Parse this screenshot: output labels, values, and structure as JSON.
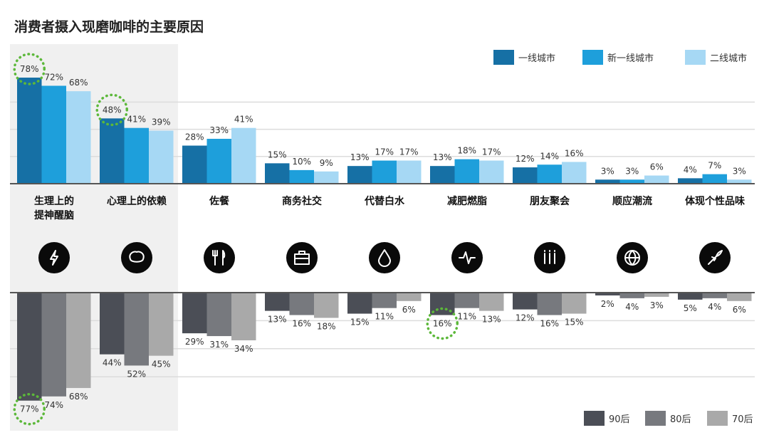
{
  "chart_data": [
    {
      "type": "bar",
      "title": "消费者摄入现磨咖啡的主要原因",
      "categories": [
        "生理上的\n提神醒脑",
        "心理上的依赖",
        "佐餐",
        "商务社交",
        "代替白水",
        "减肥燃脂",
        "朋友聚会",
        "顺应潮流",
        "体现个性品味"
      ],
      "series": [
        {
          "name": "一线城市",
          "color": "#1670a5",
          "values": [
            78,
            48,
            28,
            15,
            13,
            13,
            12,
            3,
            4
          ]
        },
        {
          "name": "新一线城市",
          "color": "#1e9fdb",
          "values": [
            72,
            41,
            33,
            10,
            17,
            18,
            14,
            3,
            7
          ]
        },
        {
          "name": "二线城市",
          "color": "#a6d8f4",
          "values": [
            68,
            39,
            41,
            9,
            17,
            17,
            16,
            6,
            3
          ]
        }
      ],
      "value_labels": "percent",
      "ylim": [
        0,
        80
      ],
      "grid": true,
      "legend": "top-right",
      "highlighted": [
        {
          "series": 0,
          "category": 0
        },
        {
          "series": 0,
          "category": 1
        }
      ],
      "highlight_color": "#5cb83a"
    },
    {
      "type": "bar",
      "orientation": "downward",
      "categories": [
        "生理上的\n提神醒脑",
        "心理上的依赖",
        "佐餐",
        "商务社交",
        "代替白水",
        "减肥燃脂",
        "朋友聚会",
        "顺应潮流",
        "体现个性品味"
      ],
      "series": [
        {
          "name": "90后",
          "color": "#4b4e56",
          "values": [
            77,
            44,
            29,
            13,
            15,
            16,
            12,
            2,
            5
          ]
        },
        {
          "name": "80后",
          "color": "#77797e",
          "values": [
            74,
            52,
            31,
            16,
            11,
            11,
            16,
            4,
            4
          ]
        },
        {
          "name": "70后",
          "color": "#a9a9a9",
          "values": [
            68,
            45,
            34,
            18,
            6,
            13,
            15,
            3,
            6
          ]
        }
      ],
      "value_labels": "percent",
      "ylim": [
        0,
        80
      ],
      "grid": true,
      "legend": "bottom-right",
      "highlighted": [
        {
          "series": 0,
          "category": 0
        },
        {
          "series": 0,
          "category": 5
        }
      ],
      "highlight_color": "#5cb83a"
    }
  ],
  "icons": [
    "lightning-icon",
    "brain-icon",
    "fork-knife-icon",
    "briefcase-icon",
    "water-drop-icon",
    "heartbeat-icon",
    "people-icon",
    "globe-icon",
    "rocket-icon"
  ],
  "highlight_panel_color": "#f0f0f0"
}
